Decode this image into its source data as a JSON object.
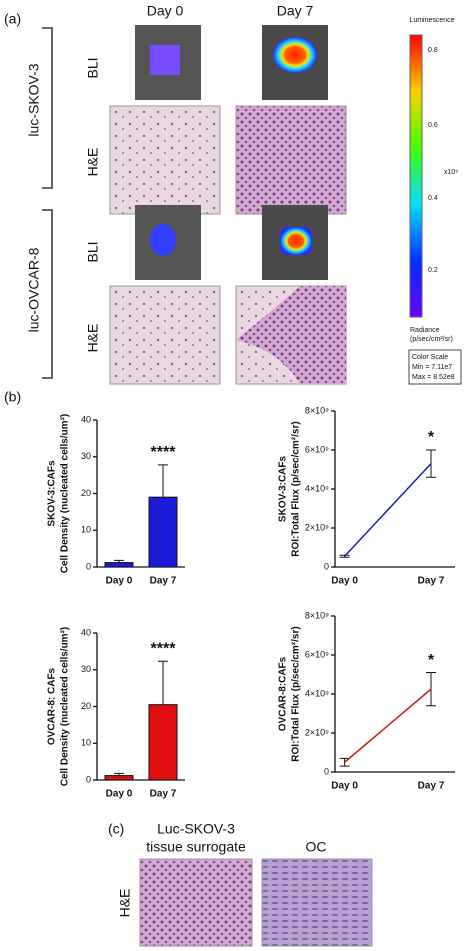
{
  "panel_labels": {
    "a": "(a)",
    "b": "(b)",
    "c": "(c)"
  },
  "panel_a": {
    "columns": [
      "Day 0",
      "Day 7"
    ],
    "groups": [
      "luc-SKOV-3",
      "luc-OVCAR-8"
    ],
    "rows": [
      "BLI",
      "H&E",
      "BLI",
      "H&E"
    ],
    "colorbar": {
      "title": "Luminescence",
      "ticks": [
        "0.8",
        "0.6",
        "0.4",
        "0.2"
      ],
      "multiplier": "x10⁹",
      "unit": "Radiance",
      "unit_detail": "(p/sec/cm²/sr)",
      "scale_box": [
        "Color Scale",
        "Min = 7.11e7",
        "Max = 8.52e8"
      ]
    }
  },
  "chart_data": [
    {
      "type": "bar",
      "ylabel_lines": [
        "SKOV-3:CAFs",
        "Cell Density (nucleated cells/um²)"
      ],
      "categories": [
        "Day 0",
        "Day 7"
      ],
      "values": [
        1.2,
        19
      ],
      "errors": [
        0.6,
        8.8
      ],
      "color": "#1c1cd8",
      "significance": "****",
      "ylim": [
        0,
        40
      ],
      "yticks": [
        0,
        10,
        20,
        30,
        40
      ]
    },
    {
      "type": "line",
      "ylabel_lines": [
        "SKOV-3:CAFs",
        "ROI:Total Flux (p/sec/cm²/sr)"
      ],
      "categories": [
        "Day 0",
        "Day 7"
      ],
      "values": [
        550000000,
        5300000000
      ],
      "errors": [
        50000000,
        700000000
      ],
      "color": "#1c1cb0",
      "significance": "*",
      "ylim": [
        0,
        8000000000
      ],
      "yticks": [
        0,
        {
          "value": 2000000000,
          "label": "2×10⁹"
        },
        {
          "value": 4000000000,
          "label": "4×10⁹"
        },
        {
          "value": 6000000000,
          "label": "6×10⁹"
        },
        {
          "value": 8000000000,
          "label": "8×10⁹"
        }
      ]
    },
    {
      "type": "bar",
      "ylabel_lines": [
        "OVCAR-8: CAFs",
        "Cell Density (nucleated cells/um²)"
      ],
      "categories": [
        "Day 0",
        "Day 7"
      ],
      "values": [
        1.2,
        20.5
      ],
      "errors": [
        0.6,
        11.8
      ],
      "color": "#e01010",
      "significance": "****",
      "ylim": [
        0,
        40
      ],
      "yticks": [
        0,
        10,
        20,
        30,
        40
      ]
    },
    {
      "type": "line",
      "ylabel_lines": [
        "OVCAR-8:CAFs",
        "ROI:Total Flux (p/sec/cm²/sr)"
      ],
      "categories": [
        "Day 0",
        "Day 7"
      ],
      "values": [
        500000000,
        4250000000
      ],
      "errors": [
        200000000,
        850000000
      ],
      "color": "#d01818",
      "significance": "*",
      "ylim": [
        0,
        8000000000
      ],
      "yticks": [
        0,
        {
          "value": 2000000000,
          "label": "2×10⁹"
        },
        {
          "value": 4000000000,
          "label": "4×10⁹"
        },
        {
          "value": 6000000000,
          "label": "6×10⁹"
        },
        {
          "value": 8000000000,
          "label": "8×10⁹"
        }
      ]
    }
  ],
  "panel_c": {
    "columns": [
      "Luc-SKOV-3",
      "tissue surrogate",
      "OC"
    ],
    "row": "H&E"
  }
}
